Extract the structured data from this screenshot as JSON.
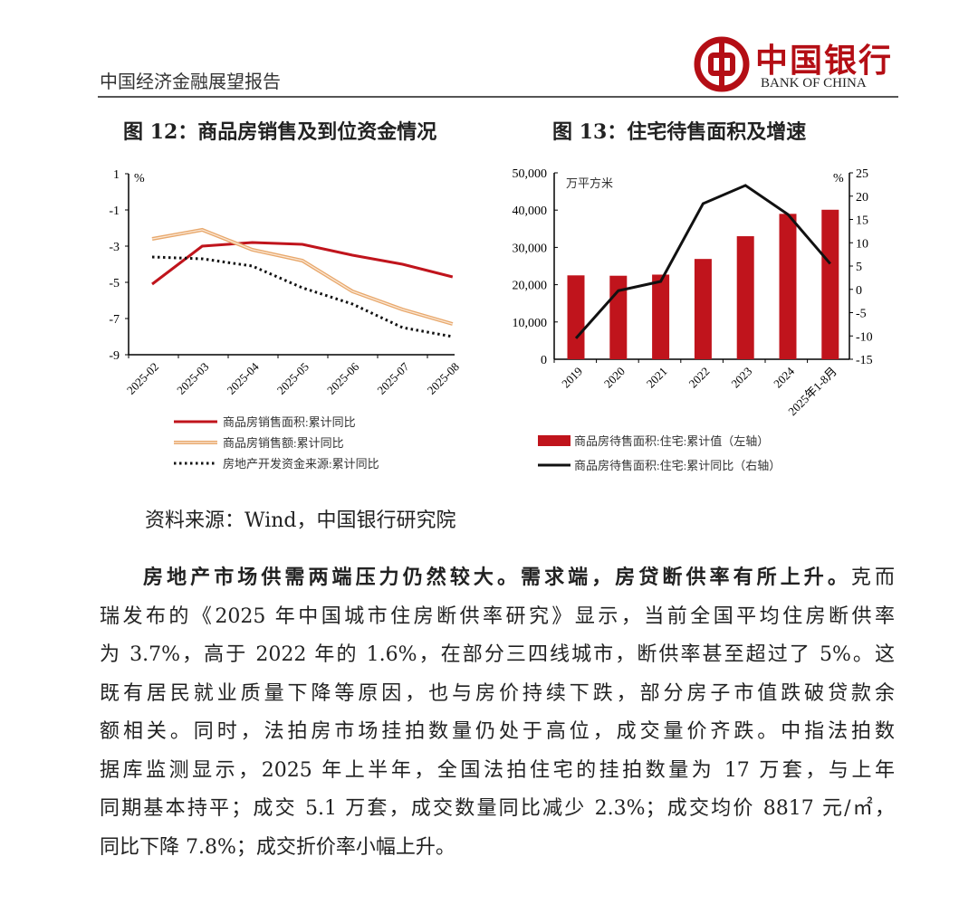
{
  "header": {
    "report_title": "中国经济金融展望报告",
    "logo_cn": "中国银行",
    "logo_en": "BANK OF CHINA",
    "brand_color": "#b40e15"
  },
  "figures": [
    {
      "title": "图 12：商品房销售及到位资金情况"
    },
    {
      "title": "图 13：住宅待售面积及增速"
    }
  ],
  "chart_data": [
    {
      "type": "line",
      "unit": "%",
      "categories": [
        "2025-02",
        "2025-03",
        "2025-04",
        "2025-05",
        "2025-06",
        "2025-07",
        "2025-08"
      ],
      "ylim": [
        -9,
        1
      ],
      "yticks": [
        "1",
        "-1",
        "-3",
        "-5",
        "-7",
        "-9"
      ],
      "legend_position": "bottom",
      "series": [
        {
          "name": "商品房销售面积:累计同比",
          "values": [
            -5.1,
            -3.0,
            -2.8,
            -2.9,
            -3.5,
            -4.0,
            -4.7
          ],
          "color": "#c0141c",
          "style": "solid"
        },
        {
          "name": "商品房销售额:累计同比",
          "values": [
            -2.6,
            -2.1,
            -3.2,
            -3.8,
            -5.5,
            -6.5,
            -7.3
          ],
          "color": "#e8a86c",
          "style": "double"
        },
        {
          "name": "房地产开发资金来源:累计同比",
          "values": [
            -3.6,
            -3.7,
            -4.1,
            -5.3,
            -6.2,
            -7.5,
            -8.0
          ],
          "color": "#111111",
          "style": "dotted"
        }
      ]
    },
    {
      "type": "bar+line",
      "categories": [
        "2019",
        "2020",
        "2021",
        "2022",
        "2023",
        "2024",
        "2025年1-8月"
      ],
      "left_unit": "万平方米",
      "right_unit": "%",
      "ylim_left": [
        0,
        50000
      ],
      "ylim_right": [
        -15,
        25
      ],
      "yticks_left": [
        "50,000",
        "40,000",
        "30,000",
        "20,000",
        "10,000",
        "0"
      ],
      "yticks_right": [
        "25",
        "20",
        "15",
        "10",
        "5",
        "0",
        "-5",
        "-10",
        "-15"
      ],
      "legend_position": "bottom",
      "series": [
        {
          "name": "商品房待售面积:住宅:累计值（左轴）",
          "type": "bar",
          "axis": "left",
          "values": [
            22500,
            22400,
            22700,
            26900,
            33000,
            39000,
            40100
          ],
          "color": "#c0141c"
        },
        {
          "name": "商品房待售面积:住宅:累计同比（右轴）",
          "type": "line",
          "axis": "right",
          "values": [
            -10.5,
            -0.3,
            1.7,
            18.4,
            22.3,
            16.1,
            5.5
          ],
          "color": "#111111"
        }
      ]
    }
  ],
  "source": "资料来源：Wind，中国银行研究院",
  "body_lines": [
    {
      "bold": "房地产市场供需两端压力仍然较大。需求端，房贷断供率有所上升。",
      "text": "克而"
    },
    {
      "bold": "",
      "text": "瑞发布的《2025 年中国城市住房断供率研究》显示，当前全国平均住房断供率"
    },
    {
      "bold": "",
      "text": "为 3.7%，高于 2022 年的 1.6%，在部分三四线城市，断供率甚至超过了 5%。这"
    },
    {
      "bold": "",
      "text": "既有居民就业质量下降等原因，也与房价持续下跌，部分房子市值跌破贷款余"
    },
    {
      "bold": "",
      "text": "额相关。同时，法拍房市场挂拍数量仍处于高位，成交量价齐跌。中指法拍数"
    },
    {
      "bold": "",
      "text": "据库监测显示，2025 年上半年，全国法拍住宅的挂拍数量为 17 万套，与上年"
    },
    {
      "bold": "",
      "text": "同期基本持平；成交 5.1 万套，成交数量同比减少 2.3%；成交均价 8817 元/㎡，"
    },
    {
      "bold": "",
      "text": "同比下降 7.8%；成交折价率小幅上升。"
    }
  ]
}
